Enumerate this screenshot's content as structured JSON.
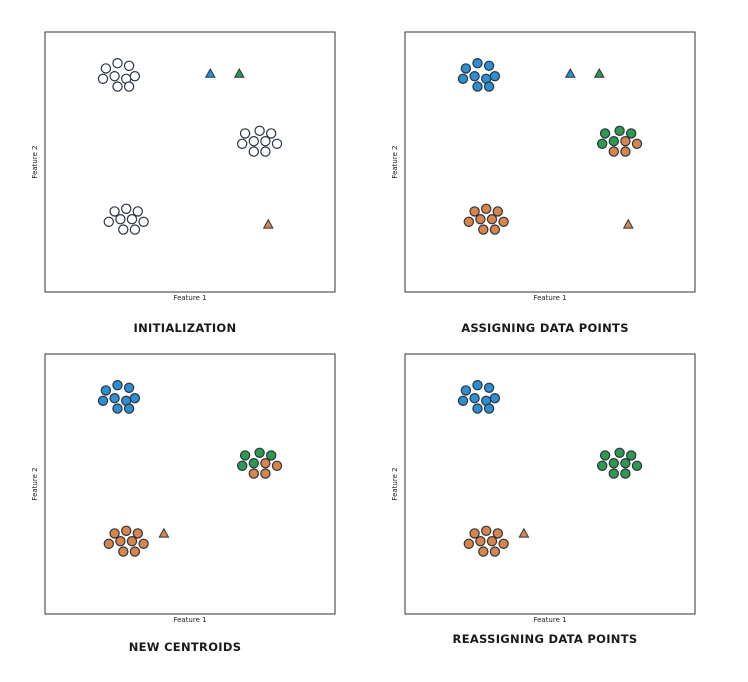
{
  "colors": {
    "blue": "#2b8fd0",
    "green": "#2e9a4e",
    "orange": "#d9854a",
    "unassigned": "#ffffff",
    "outline": "#2a3340"
  },
  "chart_data": [
    {
      "type": "scatter",
      "title": "INITIALIZATION",
      "xlabel": "Feature 1",
      "ylabel": "Feature 2",
      "xlim": [
        0,
        10
      ],
      "ylim": [
        0,
        10
      ],
      "grid": false,
      "ticks": false,
      "points": [
        {
          "x": 2.1,
          "y": 8.6,
          "cluster": "unassigned"
        },
        {
          "x": 2.5,
          "y": 8.8,
          "cluster": "unassigned"
        },
        {
          "x": 2.9,
          "y": 8.7,
          "cluster": "unassigned"
        },
        {
          "x": 2.0,
          "y": 8.2,
          "cluster": "unassigned"
        },
        {
          "x": 2.4,
          "y": 8.3,
          "cluster": "unassigned"
        },
        {
          "x": 2.8,
          "y": 8.2,
          "cluster": "unassigned"
        },
        {
          "x": 3.1,
          "y": 8.3,
          "cluster": "unassigned"
        },
        {
          "x": 2.5,
          "y": 7.9,
          "cluster": "unassigned"
        },
        {
          "x": 2.9,
          "y": 7.9,
          "cluster": "unassigned"
        },
        {
          "x": 6.9,
          "y": 6.1,
          "cluster": "unassigned"
        },
        {
          "x": 7.4,
          "y": 6.2,
          "cluster": "unassigned"
        },
        {
          "x": 7.8,
          "y": 6.1,
          "cluster": "unassigned"
        },
        {
          "x": 6.8,
          "y": 5.7,
          "cluster": "unassigned"
        },
        {
          "x": 7.2,
          "y": 5.8,
          "cluster": "unassigned"
        },
        {
          "x": 7.6,
          "y": 5.8,
          "cluster": "unassigned"
        },
        {
          "x": 8.0,
          "y": 5.7,
          "cluster": "unassigned"
        },
        {
          "x": 7.2,
          "y": 5.4,
          "cluster": "unassigned"
        },
        {
          "x": 7.6,
          "y": 5.4,
          "cluster": "unassigned"
        },
        {
          "x": 2.4,
          "y": 3.1,
          "cluster": "unassigned"
        },
        {
          "x": 2.8,
          "y": 3.2,
          "cluster": "unassigned"
        },
        {
          "x": 3.2,
          "y": 3.1,
          "cluster": "unassigned"
        },
        {
          "x": 2.2,
          "y": 2.7,
          "cluster": "unassigned"
        },
        {
          "x": 2.6,
          "y": 2.8,
          "cluster": "unassigned"
        },
        {
          "x": 3.0,
          "y": 2.8,
          "cluster": "unassigned"
        },
        {
          "x": 3.4,
          "y": 2.7,
          "cluster": "unassigned"
        },
        {
          "x": 2.7,
          "y": 2.4,
          "cluster": "unassigned"
        },
        {
          "x": 3.1,
          "y": 2.4,
          "cluster": "unassigned"
        }
      ],
      "centroids": [
        {
          "x": 5.7,
          "y": 8.4,
          "cluster": "blue"
        },
        {
          "x": 6.7,
          "y": 8.4,
          "cluster": "green"
        },
        {
          "x": 7.7,
          "y": 2.6,
          "cluster": "orange"
        }
      ]
    },
    {
      "type": "scatter",
      "title": "ASSIGNING DATA POINTS",
      "xlabel": "Feature 1",
      "ylabel": "Feature 2",
      "xlim": [
        0,
        10
      ],
      "ylim": [
        0,
        10
      ],
      "grid": false,
      "ticks": false,
      "points": [
        {
          "x": 2.1,
          "y": 8.6,
          "cluster": "blue"
        },
        {
          "x": 2.5,
          "y": 8.8,
          "cluster": "blue"
        },
        {
          "x": 2.9,
          "y": 8.7,
          "cluster": "blue"
        },
        {
          "x": 2.0,
          "y": 8.2,
          "cluster": "blue"
        },
        {
          "x": 2.4,
          "y": 8.3,
          "cluster": "blue"
        },
        {
          "x": 2.8,
          "y": 8.2,
          "cluster": "blue"
        },
        {
          "x": 3.1,
          "y": 8.3,
          "cluster": "blue"
        },
        {
          "x": 2.5,
          "y": 7.9,
          "cluster": "blue"
        },
        {
          "x": 2.9,
          "y": 7.9,
          "cluster": "blue"
        },
        {
          "x": 6.9,
          "y": 6.1,
          "cluster": "green"
        },
        {
          "x": 7.4,
          "y": 6.2,
          "cluster": "green"
        },
        {
          "x": 7.8,
          "y": 6.1,
          "cluster": "green"
        },
        {
          "x": 6.8,
          "y": 5.7,
          "cluster": "green"
        },
        {
          "x": 7.2,
          "y": 5.8,
          "cluster": "green"
        },
        {
          "x": 7.6,
          "y": 5.8,
          "cluster": "orange"
        },
        {
          "x": 8.0,
          "y": 5.7,
          "cluster": "orange"
        },
        {
          "x": 7.2,
          "y": 5.4,
          "cluster": "orange"
        },
        {
          "x": 7.6,
          "y": 5.4,
          "cluster": "orange"
        },
        {
          "x": 2.4,
          "y": 3.1,
          "cluster": "orange"
        },
        {
          "x": 2.8,
          "y": 3.2,
          "cluster": "orange"
        },
        {
          "x": 3.2,
          "y": 3.1,
          "cluster": "orange"
        },
        {
          "x": 2.2,
          "y": 2.7,
          "cluster": "orange"
        },
        {
          "x": 2.6,
          "y": 2.8,
          "cluster": "orange"
        },
        {
          "x": 3.0,
          "y": 2.8,
          "cluster": "orange"
        },
        {
          "x": 3.4,
          "y": 2.7,
          "cluster": "orange"
        },
        {
          "x": 2.7,
          "y": 2.4,
          "cluster": "orange"
        },
        {
          "x": 3.1,
          "y": 2.4,
          "cluster": "orange"
        }
      ],
      "centroids": [
        {
          "x": 5.7,
          "y": 8.4,
          "cluster": "blue"
        },
        {
          "x": 6.7,
          "y": 8.4,
          "cluster": "green"
        },
        {
          "x": 7.7,
          "y": 2.6,
          "cluster": "orange"
        }
      ]
    },
    {
      "type": "scatter",
      "title": "NEW CENTROIDS",
      "xlabel": "Feature 1",
      "ylabel": "Feature 2",
      "xlim": [
        0,
        10
      ],
      "ylim": [
        0,
        10
      ],
      "grid": false,
      "ticks": false,
      "points": [
        {
          "x": 2.1,
          "y": 8.6,
          "cluster": "blue"
        },
        {
          "x": 2.5,
          "y": 8.8,
          "cluster": "blue"
        },
        {
          "x": 2.9,
          "y": 8.7,
          "cluster": "blue"
        },
        {
          "x": 2.0,
          "y": 8.2,
          "cluster": "blue"
        },
        {
          "x": 2.4,
          "y": 8.3,
          "cluster": "blue"
        },
        {
          "x": 2.8,
          "y": 8.2,
          "cluster": "blue"
        },
        {
          "x": 3.1,
          "y": 8.3,
          "cluster": "blue"
        },
        {
          "x": 2.5,
          "y": 7.9,
          "cluster": "blue"
        },
        {
          "x": 2.9,
          "y": 7.9,
          "cluster": "blue"
        },
        {
          "x": 6.9,
          "y": 6.1,
          "cluster": "green"
        },
        {
          "x": 7.4,
          "y": 6.2,
          "cluster": "green"
        },
        {
          "x": 7.8,
          "y": 6.1,
          "cluster": "green"
        },
        {
          "x": 6.8,
          "y": 5.7,
          "cluster": "green"
        },
        {
          "x": 7.2,
          "y": 5.8,
          "cluster": "green"
        },
        {
          "x": 7.6,
          "y": 5.8,
          "cluster": "orange"
        },
        {
          "x": 8.0,
          "y": 5.7,
          "cluster": "orange"
        },
        {
          "x": 7.2,
          "y": 5.4,
          "cluster": "orange"
        },
        {
          "x": 7.6,
          "y": 5.4,
          "cluster": "orange"
        },
        {
          "x": 2.4,
          "y": 3.1,
          "cluster": "orange"
        },
        {
          "x": 2.8,
          "y": 3.2,
          "cluster": "orange"
        },
        {
          "x": 3.2,
          "y": 3.1,
          "cluster": "orange"
        },
        {
          "x": 2.2,
          "y": 2.7,
          "cluster": "orange"
        },
        {
          "x": 2.6,
          "y": 2.8,
          "cluster": "orange"
        },
        {
          "x": 3.0,
          "y": 2.8,
          "cluster": "orange"
        },
        {
          "x": 3.4,
          "y": 2.7,
          "cluster": "orange"
        },
        {
          "x": 2.7,
          "y": 2.4,
          "cluster": "orange"
        },
        {
          "x": 3.1,
          "y": 2.4,
          "cluster": "orange"
        }
      ],
      "centroids": [
        {
          "x": 4.1,
          "y": 3.1,
          "cluster": "orange"
        }
      ]
    },
    {
      "type": "scatter",
      "title": "REASSIGNING DATA POINTS",
      "xlabel": "Feature 1",
      "ylabel": "Feature 2",
      "xlim": [
        0,
        10
      ],
      "ylim": [
        0,
        10
      ],
      "grid": false,
      "ticks": false,
      "points": [
        {
          "x": 2.1,
          "y": 8.6,
          "cluster": "blue"
        },
        {
          "x": 2.5,
          "y": 8.8,
          "cluster": "blue"
        },
        {
          "x": 2.9,
          "y": 8.7,
          "cluster": "blue"
        },
        {
          "x": 2.0,
          "y": 8.2,
          "cluster": "blue"
        },
        {
          "x": 2.4,
          "y": 8.3,
          "cluster": "blue"
        },
        {
          "x": 2.8,
          "y": 8.2,
          "cluster": "blue"
        },
        {
          "x": 3.1,
          "y": 8.3,
          "cluster": "blue"
        },
        {
          "x": 2.5,
          "y": 7.9,
          "cluster": "blue"
        },
        {
          "x": 2.9,
          "y": 7.9,
          "cluster": "blue"
        },
        {
          "x": 6.9,
          "y": 6.1,
          "cluster": "green"
        },
        {
          "x": 7.4,
          "y": 6.2,
          "cluster": "green"
        },
        {
          "x": 7.8,
          "y": 6.1,
          "cluster": "green"
        },
        {
          "x": 6.8,
          "y": 5.7,
          "cluster": "green"
        },
        {
          "x": 7.2,
          "y": 5.8,
          "cluster": "green"
        },
        {
          "x": 7.6,
          "y": 5.8,
          "cluster": "green"
        },
        {
          "x": 8.0,
          "y": 5.7,
          "cluster": "green"
        },
        {
          "x": 7.2,
          "y": 5.4,
          "cluster": "green"
        },
        {
          "x": 7.6,
          "y": 5.4,
          "cluster": "green"
        },
        {
          "x": 2.4,
          "y": 3.1,
          "cluster": "orange"
        },
        {
          "x": 2.8,
          "y": 3.2,
          "cluster": "orange"
        },
        {
          "x": 3.2,
          "y": 3.1,
          "cluster": "orange"
        },
        {
          "x": 2.2,
          "y": 2.7,
          "cluster": "orange"
        },
        {
          "x": 2.6,
          "y": 2.8,
          "cluster": "orange"
        },
        {
          "x": 3.0,
          "y": 2.8,
          "cluster": "orange"
        },
        {
          "x": 3.4,
          "y": 2.7,
          "cluster": "orange"
        },
        {
          "x": 2.7,
          "y": 2.4,
          "cluster": "orange"
        },
        {
          "x": 3.1,
          "y": 2.4,
          "cluster": "orange"
        }
      ],
      "centroids": [
        {
          "x": 4.1,
          "y": 3.1,
          "cluster": "orange"
        }
      ]
    }
  ]
}
